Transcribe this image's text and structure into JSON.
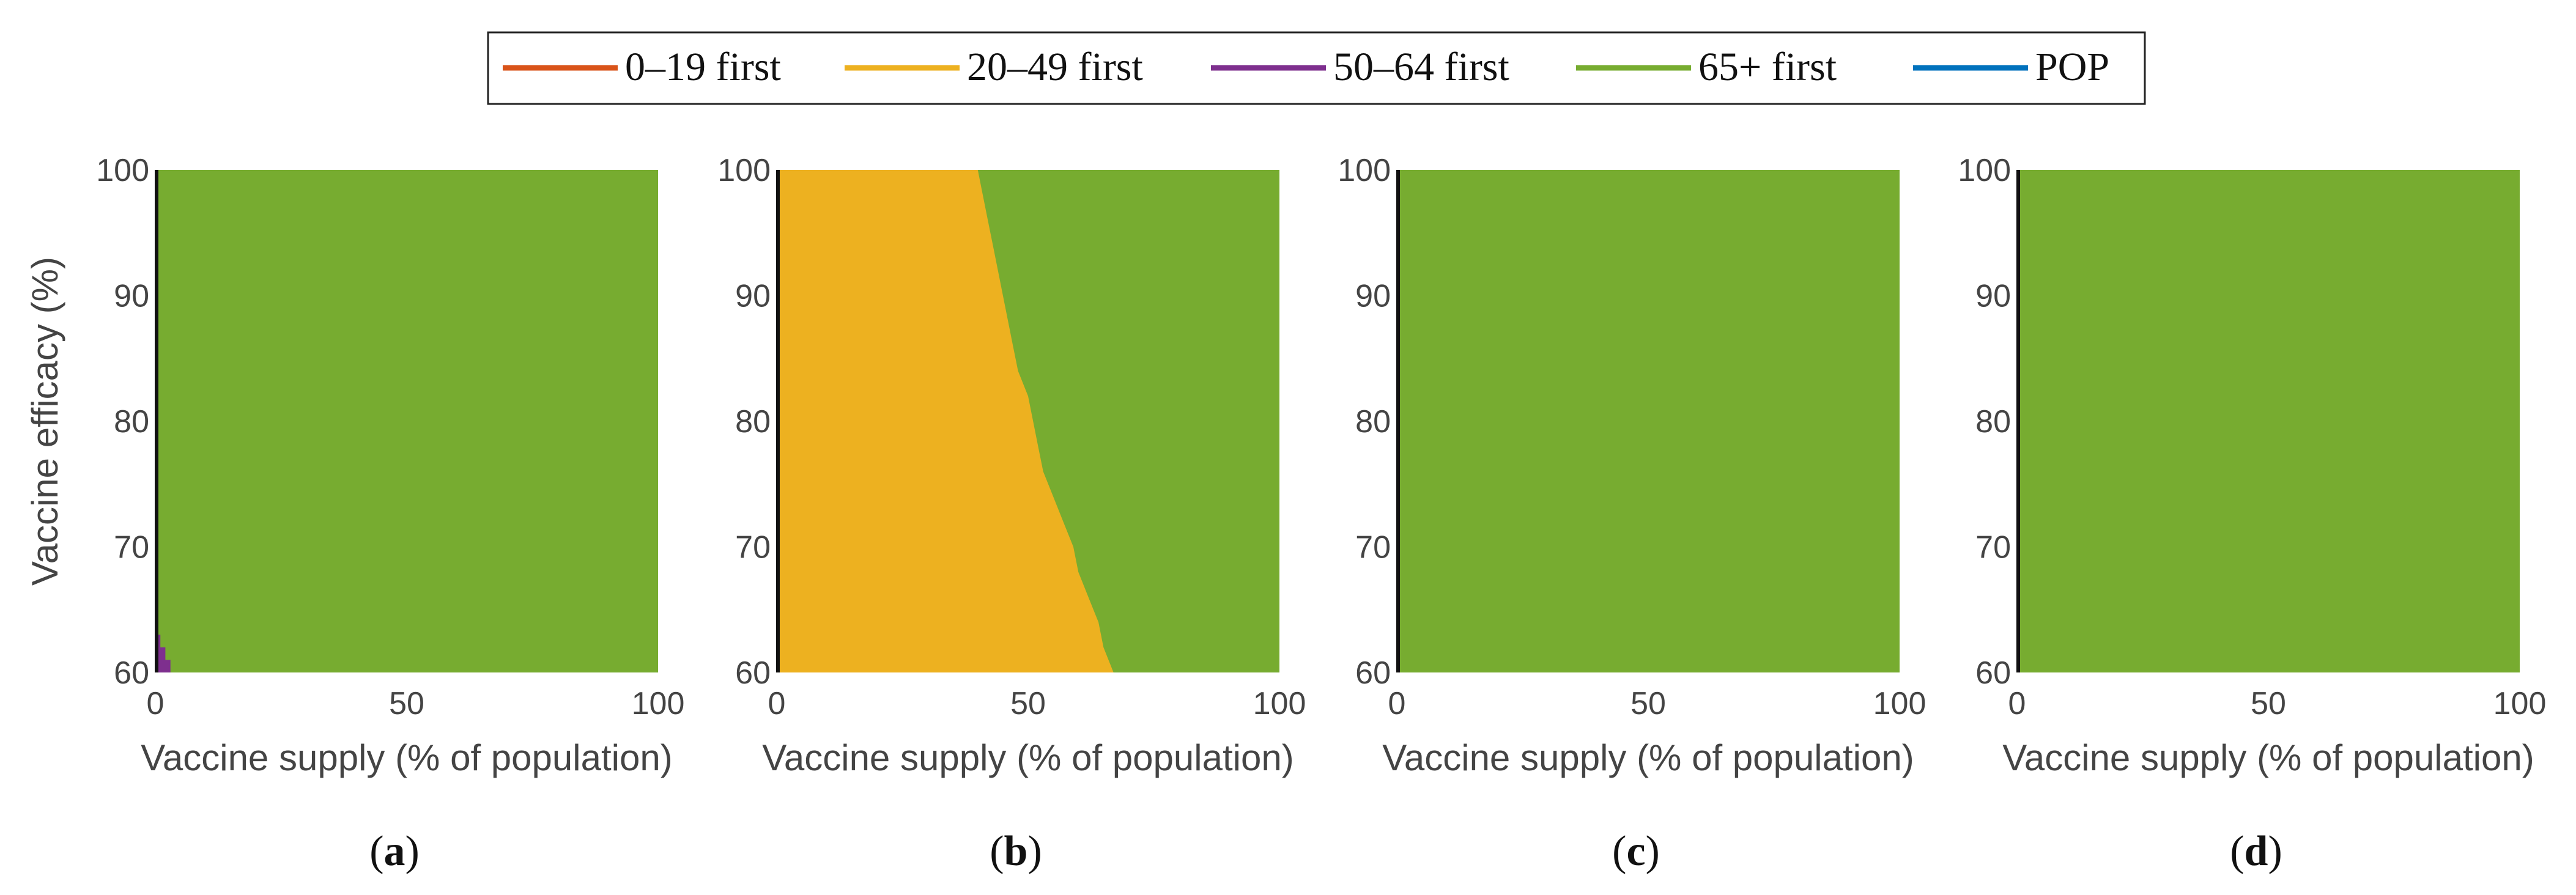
{
  "legend": {
    "entries": [
      {
        "label": "0–19 first",
        "color": "#D95319"
      },
      {
        "label": "20–49 first",
        "color": "#EDB120"
      },
      {
        "label": "50–64 first",
        "color": "#7E2F8E"
      },
      {
        "label": "65+ first",
        "color": "#77AC30"
      },
      {
        "label": "POP",
        "color": "#0072BD"
      }
    ]
  },
  "chart_data": [
    {
      "type": "heatmap",
      "panel_label": "a",
      "xlabel": "Vaccine supply (% of population)",
      "ylabel": "Vaccine efficacy (%)",
      "xlim": [
        0,
        100
      ],
      "ylim": [
        60,
        100
      ],
      "xticks": [
        "0",
        "50",
        "100"
      ],
      "yticks": [
        "60",
        "70",
        "80",
        "90",
        "100"
      ],
      "background_strategy": "65+ first",
      "regions": [
        {
          "strategy": "50–64 first",
          "boundary_points": [
            [
              0,
              63
            ],
            [
              1,
              63
            ],
            [
              1,
              62
            ],
            [
              2,
              62
            ],
            [
              2,
              61
            ],
            [
              3,
              61
            ],
            [
              3,
              60
            ],
            [
              0,
              60
            ]
          ]
        }
      ]
    },
    {
      "type": "heatmap",
      "panel_label": "b",
      "xlabel": "Vaccine supply (% of population)",
      "ylabel": "",
      "xlim": [
        0,
        100
      ],
      "ylim": [
        60,
        100
      ],
      "xticks": [
        "0",
        "50",
        "100"
      ],
      "yticks": [
        "60",
        "70",
        "80",
        "90",
        "100"
      ],
      "background_strategy": "65+ first",
      "regions": [
        {
          "strategy": "20–49 first",
          "boundary_points": [
            [
              0,
              100
            ],
            [
              40,
              100
            ],
            [
              41,
              98
            ],
            [
              42,
              96
            ],
            [
              43,
              94
            ],
            [
              44,
              92
            ],
            [
              45,
              90
            ],
            [
              46,
              88
            ],
            [
              47,
              86
            ],
            [
              48,
              84
            ],
            [
              50,
              82
            ],
            [
              51,
              80
            ],
            [
              52,
              78
            ],
            [
              53,
              76
            ],
            [
              55,
              74
            ],
            [
              57,
              72
            ],
            [
              59,
              70
            ],
            [
              60,
              68
            ],
            [
              62,
              66
            ],
            [
              64,
              64
            ],
            [
              65,
              62
            ],
            [
              67,
              60
            ],
            [
              0,
              60
            ]
          ]
        }
      ]
    },
    {
      "type": "heatmap",
      "panel_label": "c",
      "xlabel": "Vaccine supply (% of population)",
      "ylabel": "",
      "xlim": [
        0,
        100
      ],
      "ylim": [
        60,
        100
      ],
      "xticks": [
        "0",
        "50",
        "100"
      ],
      "yticks": [
        "60",
        "70",
        "80",
        "90",
        "100"
      ],
      "background_strategy": "65+ first",
      "regions": []
    },
    {
      "type": "heatmap",
      "panel_label": "d",
      "xlabel": "Vaccine supply (% of population)",
      "ylabel": "",
      "xlim": [
        0,
        100
      ],
      "ylim": [
        60,
        100
      ],
      "xticks": [
        "0",
        "50",
        "100"
      ],
      "yticks": [
        "60",
        "70",
        "80",
        "90",
        "100"
      ],
      "background_strategy": "65+ first",
      "regions": []
    }
  ]
}
